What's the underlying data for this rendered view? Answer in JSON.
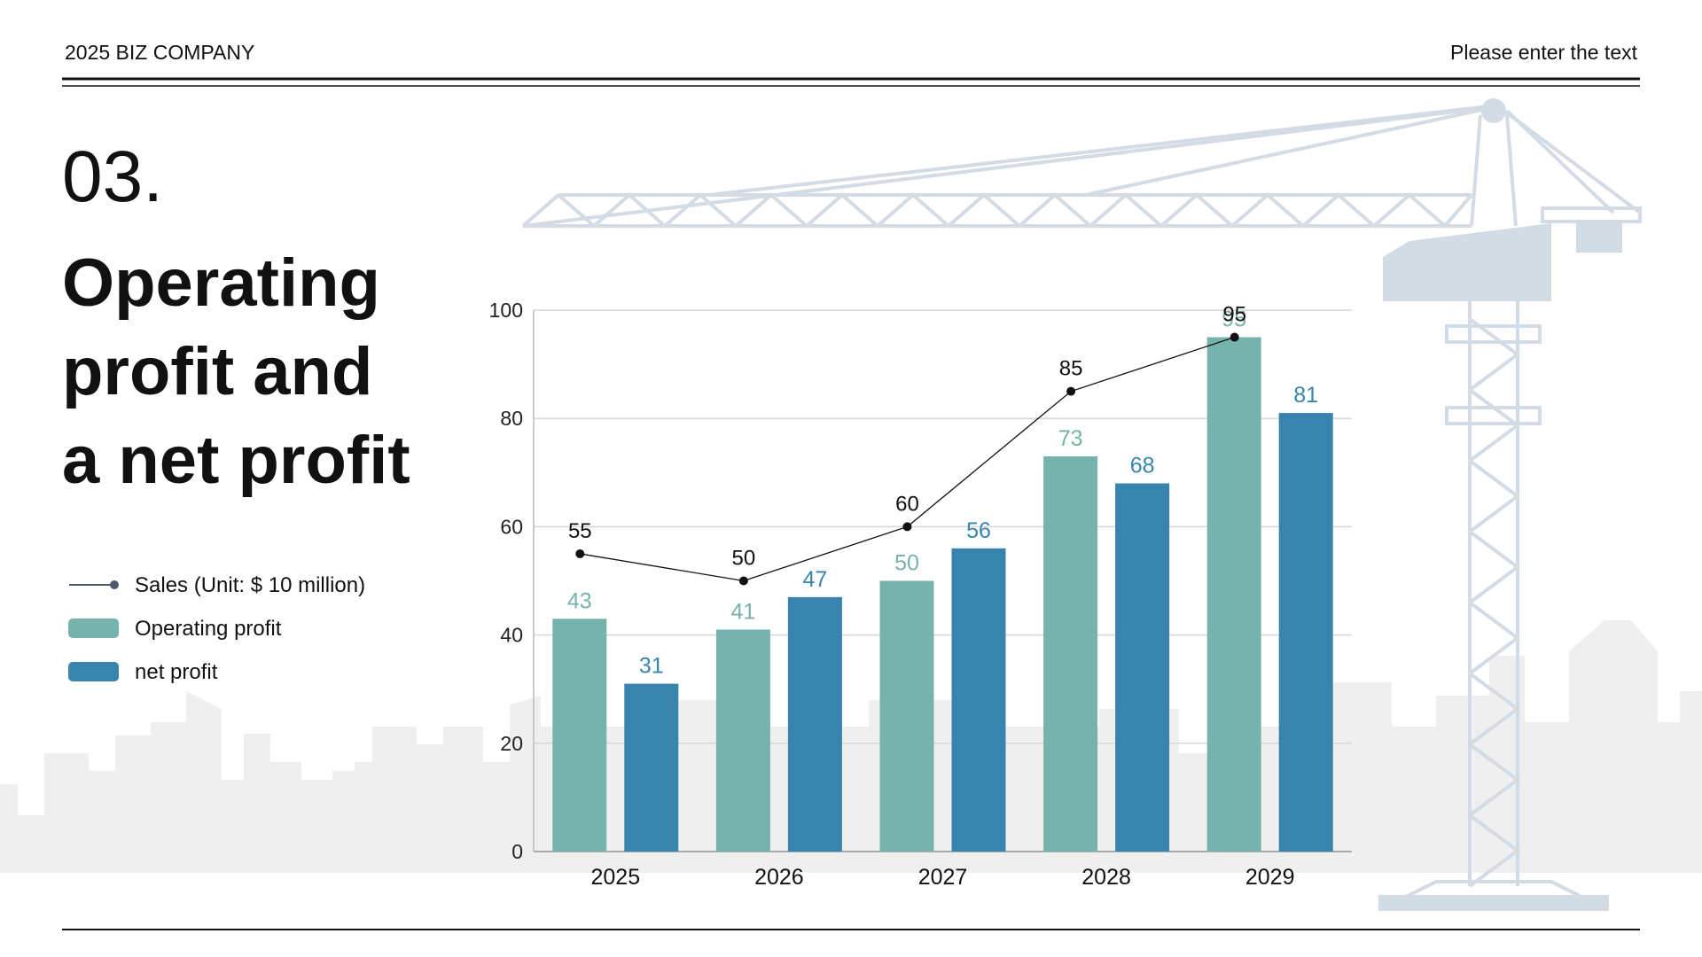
{
  "header": {
    "left": "2025 BIZ COMPANY",
    "right": "Please enter the text"
  },
  "section_number": "03.",
  "title_lines": [
    "Operating",
    "profit and",
    "a net profit"
  ],
  "chart_data": {
    "type": "bar",
    "categories": [
      "2025",
      "2026",
      "2027",
      "2028",
      "2029"
    ],
    "series": [
      {
        "name": "Sales (Unit: $ 10 million)",
        "type": "line",
        "color": "#111111",
        "values": [
          55,
          50,
          60,
          85,
          95
        ]
      },
      {
        "name": "Operating profit",
        "type": "bar",
        "color": "#76b3ad",
        "values": [
          43,
          41,
          50,
          73,
          95
        ]
      },
      {
        "name": "net profit",
        "type": "bar",
        "color": "#3884ae",
        "values": [
          31,
          47,
          56,
          68,
          81
        ]
      }
    ],
    "ylim": [
      0,
      100
    ],
    "yticks": [
      0,
      20,
      40,
      60,
      80,
      100
    ],
    "grid": true
  }
}
